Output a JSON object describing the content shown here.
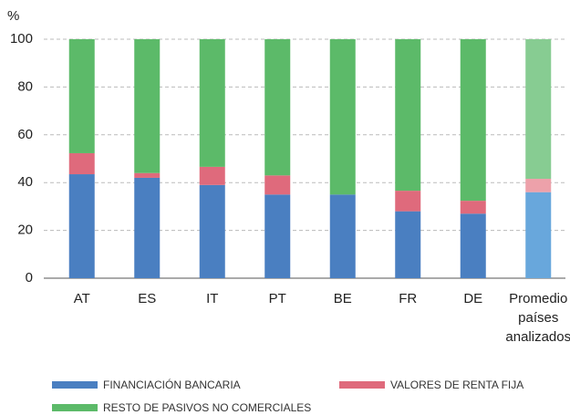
{
  "chart_data": {
    "type": "stacked_bar",
    "y_unit": "%",
    "categories": [
      "AT",
      "ES",
      "IT",
      "PT",
      "BE",
      "FR",
      "DE",
      "Promedio países analizados"
    ],
    "series": [
      {
        "name": "FINANCIACIÓN BANCARIA",
        "color": "#4a7fc1",
        "light_color": "#68a7dc",
        "values": [
          43.5,
          42,
          39,
          35,
          35,
          28,
          27,
          36
        ]
      },
      {
        "name": "VALORES DE RENTA FIJA",
        "color": "#df6a7c",
        "light_color": "#eda1aa",
        "values": [
          8.8,
          2,
          7.6,
          8,
          0,
          8.6,
          5.4,
          5.6
        ]
      },
      {
        "name": "RESTO DE PASIVOS NO COMERCIALES",
        "color": "#5cba69",
        "light_color": "#87cc92",
        "values": [
          47.7,
          56,
          53.4,
          57,
          65,
          63.4,
          67.6,
          58.4
        ]
      }
    ],
    "ylim": [
      0,
      100
    ],
    "yticks": [
      0,
      20,
      40,
      60,
      80,
      100
    ],
    "grid": true
  }
}
